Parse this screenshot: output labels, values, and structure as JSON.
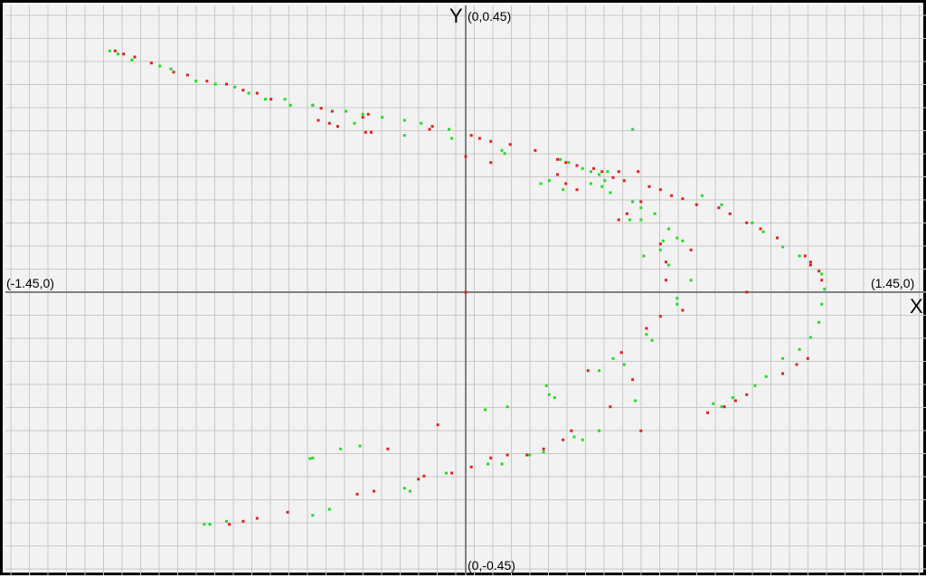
{
  "chart_data": {
    "type": "scatter",
    "xlim": [
      -1.45,
      1.45
    ],
    "ylim": [
      -0.45,
      0.45
    ],
    "grid": true,
    "legend": "none",
    "axis_names": {
      "x": "X",
      "y": "Y"
    },
    "extent_labels": {
      "top": "(0,0.45)",
      "bottom": "(0,-0.45)",
      "left": "(-1.45,0)",
      "right": "(1.45,0)"
    },
    "colors": {
      "background": "#f2f2f2",
      "grid": "#c8c8c8",
      "axis": "#808080",
      "red_points": "#e02020",
      "green_points": "#22dd22"
    },
    "series": [
      {
        "color": "#e02020",
        "points": [
          [
            -1.26,
            0.4
          ],
          [
            -1.23,
            0.395
          ],
          [
            -1.19,
            0.39
          ],
          [
            -1.13,
            0.38
          ],
          [
            -1.05,
            0.365
          ],
          [
            -1.0,
            0.36
          ],
          [
            -0.93,
            0.35
          ],
          [
            -0.86,
            0.345
          ],
          [
            -0.8,
            0.335
          ],
          [
            -0.75,
            0.33
          ],
          [
            -0.7,
            0.32
          ],
          [
            -0.55,
            0.31
          ],
          [
            -0.52,
            0.305
          ],
          [
            -0.48,
            0.3
          ],
          [
            -0.53,
            0.285
          ],
          [
            -0.49,
            0.28
          ],
          [
            -0.46,
            0.275
          ],
          [
            -0.35,
            0.295
          ],
          [
            -0.37,
            0.29
          ],
          [
            -0.34,
            0.265
          ],
          [
            -0.36,
            0.265
          ],
          [
            -0.12,
            0.275
          ],
          [
            -0.13,
            0.27
          ],
          [
            0.02,
            0.26
          ],
          [
            0.05,
            0.255
          ],
          [
            0.09,
            0.25
          ],
          [
            0.16,
            0.245
          ],
          [
            0.25,
            0.235
          ],
          [
            0.0,
            0.225
          ],
          [
            0.09,
            0.215
          ],
          [
            0.33,
            0.22
          ],
          [
            0.36,
            0.215
          ],
          [
            0.4,
            0.21
          ],
          [
            0.46,
            0.205
          ],
          [
            0.49,
            0.2
          ],
          [
            0.53,
            0.19
          ],
          [
            0.57,
            0.185
          ],
          [
            0.66,
            0.175
          ],
          [
            0.7,
            0.17
          ],
          [
            0.74,
            0.16
          ],
          [
            0.78,
            0.155
          ],
          [
            0.83,
            0.145
          ],
          [
            0.91,
            0.14
          ],
          [
            0.95,
            0.13
          ],
          [
            1.01,
            0.115
          ],
          [
            1.06,
            0.105
          ],
          [
            1.12,
            0.09
          ],
          [
            1.22,
            0.06
          ],
          [
            1.24,
            0.05
          ],
          [
            1.27,
            0.035
          ],
          [
            1.28,
            0.02
          ],
          [
            0.4,
            0.17
          ],
          [
            0.36,
            0.18
          ],
          [
            0.33,
            0.195
          ],
          [
            0.55,
            0.2
          ],
          [
            0.62,
            0.2
          ],
          [
            0.63,
            0.15
          ],
          [
            0.58,
            0.13
          ],
          [
            0.55,
            0.12
          ],
          [
            0.7,
            0.08
          ],
          [
            0.72,
            0.05
          ],
          [
            0.81,
            0.07
          ],
          [
            0.72,
            0.02
          ],
          [
            0.65,
            -0.06
          ],
          [
            0.7,
            -0.04
          ],
          [
            0.78,
            -0.03
          ],
          [
            0.0,
            0.0
          ],
          [
            1.01,
            0.0
          ],
          [
            0.56,
            -0.1
          ],
          [
            0.44,
            -0.13
          ],
          [
            0.6,
            -0.145
          ],
          [
            0.52,
            -0.19
          ],
          [
            0.38,
            -0.23
          ],
          [
            0.35,
            -0.245
          ],
          [
            0.28,
            -0.26
          ],
          [
            0.22,
            -0.27
          ],
          [
            0.15,
            -0.27
          ],
          [
            0.09,
            -0.275
          ],
          [
            0.02,
            -0.29
          ],
          [
            -0.05,
            -0.3
          ],
          [
            -0.15,
            -0.305
          ],
          [
            -0.17,
            -0.31
          ],
          [
            -0.33,
            -0.33
          ],
          [
            -0.39,
            -0.335
          ],
          [
            -0.64,
            -0.365
          ],
          [
            -0.75,
            -0.375
          ],
          [
            -0.8,
            -0.38
          ],
          [
            -0.85,
            -0.385
          ],
          [
            -0.28,
            -0.26
          ],
          [
            -0.1,
            -0.22
          ],
          [
            1.23,
            -0.11
          ],
          [
            1.19,
            -0.12
          ],
          [
            1.14,
            -0.135
          ],
          [
            1.01,
            -0.17
          ],
          [
            0.97,
            -0.18
          ],
          [
            0.93,
            -0.19
          ],
          [
            0.87,
            -0.2
          ],
          [
            0.63,
            -0.23
          ],
          [
            1.24,
            0.045
          ]
        ]
      },
      {
        "color": "#22dd22",
        "points": [
          [
            -1.28,
            0.4
          ],
          [
            -1.25,
            0.395
          ],
          [
            -1.2,
            0.385
          ],
          [
            -1.1,
            0.375
          ],
          [
            -1.06,
            0.37
          ],
          [
            -0.97,
            0.35
          ],
          [
            -0.9,
            0.345
          ],
          [
            -0.83,
            0.34
          ],
          [
            -0.78,
            0.33
          ],
          [
            -0.72,
            0.32
          ],
          [
            -0.65,
            0.32
          ],
          [
            -0.63,
            0.31
          ],
          [
            -0.55,
            0.31
          ],
          [
            -0.43,
            0.3
          ],
          [
            -0.37,
            0.295
          ],
          [
            -0.3,
            0.29
          ],
          [
            -0.22,
            0.285
          ],
          [
            -0.16,
            0.28
          ],
          [
            -0.06,
            0.27
          ],
          [
            -0.05,
            0.255
          ],
          [
            -0.4,
            0.28
          ],
          [
            -0.22,
            0.26
          ],
          [
            0.13,
            0.235
          ],
          [
            0.14,
            0.23
          ],
          [
            0.34,
            0.22
          ],
          [
            0.37,
            0.215
          ],
          [
            0.42,
            0.205
          ],
          [
            0.45,
            0.2
          ],
          [
            0.51,
            0.2
          ],
          [
            0.48,
            0.195
          ],
          [
            0.85,
            0.16
          ],
          [
            0.92,
            0.145
          ],
          [
            1.03,
            0.115
          ],
          [
            1.07,
            0.1
          ],
          [
            1.14,
            0.075
          ],
          [
            1.2,
            0.06
          ],
          [
            1.28,
            0.03
          ],
          [
            1.29,
            0.005
          ],
          [
            1.28,
            -0.02
          ],
          [
            1.27,
            -0.05
          ],
          [
            1.24,
            -0.075
          ],
          [
            1.2,
            -0.095
          ],
          [
            1.08,
            -0.14
          ],
          [
            1.04,
            -0.155
          ],
          [
            0.96,
            -0.175
          ],
          [
            0.92,
            -0.19
          ],
          [
            0.35,
            0.17
          ],
          [
            0.27,
            0.18
          ],
          [
            0.3,
            0.185
          ],
          [
            0.45,
            0.18
          ],
          [
            0.49,
            0.175
          ],
          [
            0.5,
            0.185
          ],
          [
            0.52,
            0.165
          ],
          [
            0.6,
            0.15
          ],
          [
            0.63,
            0.14
          ],
          [
            0.68,
            0.13
          ],
          [
            0.73,
            0.105
          ],
          [
            0.76,
            0.09
          ],
          [
            0.78,
            0.085
          ],
          [
            0.7,
            0.07
          ],
          [
            0.71,
            0.085
          ],
          [
            0.59,
            0.12
          ],
          [
            0.63,
            0.12
          ],
          [
            0.64,
            0.06
          ],
          [
            0.73,
            0.045
          ],
          [
            0.76,
            -0.01
          ],
          [
            0.81,
            0.02
          ],
          [
            0.67,
            -0.08
          ],
          [
            0.65,
            -0.07
          ],
          [
            0.53,
            -0.11
          ],
          [
            0.57,
            -0.12
          ],
          [
            0.48,
            -0.13
          ],
          [
            0.32,
            -0.175
          ],
          [
            0.3,
            -0.17
          ],
          [
            0.29,
            -0.155
          ],
          [
            0.15,
            -0.19
          ],
          [
            0.07,
            -0.195
          ],
          [
            0.39,
            -0.24
          ],
          [
            0.42,
            -0.245
          ],
          [
            0.48,
            -0.23
          ],
          [
            0.28,
            -0.265
          ],
          [
            0.23,
            -0.27
          ],
          [
            0.13,
            -0.285
          ],
          [
            0.08,
            -0.285
          ],
          [
            -0.07,
            -0.3
          ],
          [
            -0.22,
            -0.325
          ],
          [
            -0.2,
            -0.33
          ],
          [
            -0.49,
            -0.36
          ],
          [
            -0.55,
            -0.37
          ],
          [
            -0.86,
            -0.38
          ],
          [
            -0.92,
            -0.385
          ],
          [
            -0.94,
            -0.385
          ],
          [
            -0.55,
            -0.275
          ],
          [
            -0.45,
            -0.26
          ],
          [
            -0.38,
            -0.255
          ],
          [
            -0.56,
            -0.276
          ],
          [
            0.61,
            -0.18
          ],
          [
            0.89,
            -0.185
          ],
          [
            1.14,
            -0.11
          ],
          [
            0.6,
            0.27
          ],
          [
            0.76,
            -0.02
          ]
        ]
      }
    ]
  }
}
